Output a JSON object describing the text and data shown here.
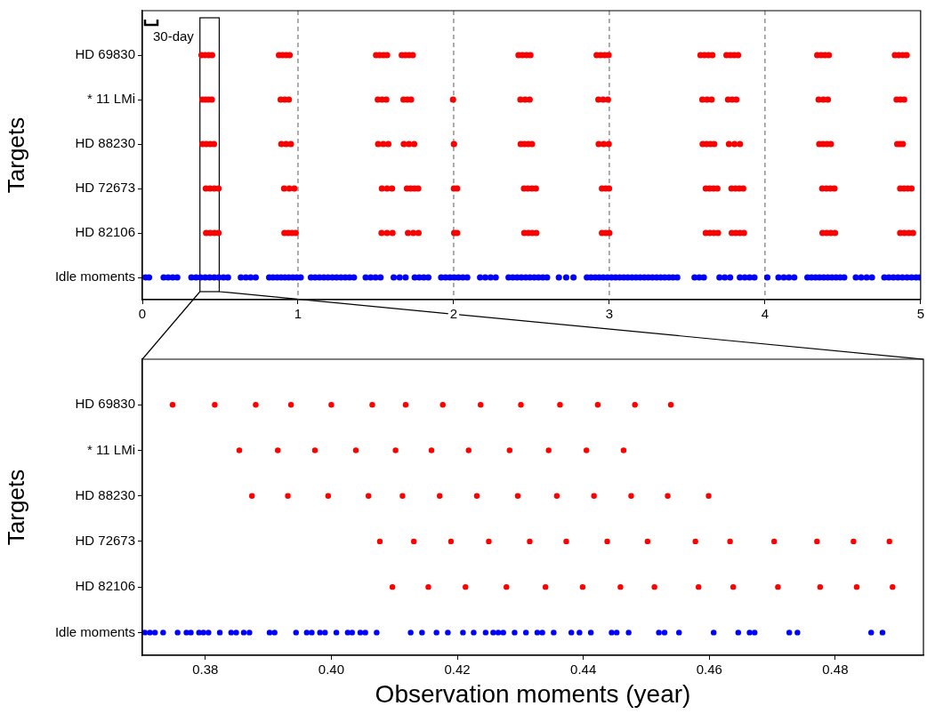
{
  "chart_data": [
    {
      "type": "scatter",
      "orientation": "horizontal",
      "ylabel": "Targets",
      "categories": [
        "HD 69830",
        "* 11 LMi",
        "HD 88230",
        "HD 72673",
        "HD 82106",
        "Idle moments"
      ],
      "xlim": [
        0,
        5
      ],
      "xticks": [
        0,
        1,
        2,
        3,
        4,
        5
      ],
      "marker": "circle",
      "ref_lines": [
        {
          "axis": "x",
          "value": 1,
          "color": "#808080",
          "line_style": "dashed"
        },
        {
          "axis": "x",
          "value": 2,
          "color": "#808080",
          "line_style": "dashed"
        },
        {
          "axis": "x",
          "value": 3,
          "color": "#808080",
          "line_style": "dashed"
        },
        {
          "axis": "x",
          "value": 4,
          "color": "#808080",
          "line_style": "dashed"
        }
      ],
      "annotations": [
        "30-day"
      ],
      "series": [
        {
          "color": "#ff0000",
          "values": [
            0.38,
            0.403,
            0.426,
            0.448,
            0.878,
            0.901,
            0.924,
            0.946,
            1.502,
            1.525,
            1.549,
            1.572,
            1.667,
            1.69,
            1.714,
            1.737,
            2.417,
            2.442,
            2.468,
            2.493,
            2.919,
            2.944,
            2.97,
            2.995,
            3.586,
            3.611,
            3.637,
            3.662,
            3.753,
            3.778,
            3.802,
            3.827,
            4.336,
            4.361,
            4.385,
            4.41,
            4.835,
            4.86,
            4.885,
            4.91
          ],
          "x": [
            "HD 69830",
            "HD 69830",
            "HD 69830",
            "HD 69830",
            "HD 69830",
            "HD 69830",
            "HD 69830",
            "HD 69830",
            "HD 69830",
            "HD 69830",
            "HD 69830",
            "HD 69830",
            "HD 69830",
            "HD 69830",
            "HD 69830",
            "HD 69830",
            "HD 69830",
            "HD 69830",
            "HD 69830",
            "HD 69830",
            "HD 69830",
            "HD 69830",
            "HD 69830",
            "HD 69830",
            "HD 69830",
            "HD 69830",
            "HD 69830",
            "HD 69830",
            "HD 69830",
            "HD 69830",
            "HD 69830",
            "HD 69830",
            "HD 69830",
            "HD 69830",
            "HD 69830",
            "HD 69830",
            "HD 69830",
            "HD 69830",
            "HD 69830",
            "HD 69830"
          ]
        },
        {
          "color": "#ff0000",
          "values": [
            0.386,
            0.406,
            0.426,
            0.446,
            0.889,
            0.915,
            0.941,
            1.513,
            1.54,
            1.567,
            1.678,
            1.702,
            1.726,
            1.996,
            2.429,
            2.459,
            2.488,
            2.93,
            2.96,
            2.991,
            3.598,
            3.628,
            3.657,
            3.763,
            3.79,
            3.816,
            4.345,
            4.375,
            4.404,
            4.846,
            4.87,
            4.894
          ],
          "x": [
            "* 11 LMi",
            "* 11 LMi",
            "* 11 LMi",
            "* 11 LMi",
            "* 11 LMi",
            "* 11 LMi",
            "* 11 LMi",
            "* 11 LMi",
            "* 11 LMi",
            "* 11 LMi",
            "* 11 LMi",
            "* 11 LMi",
            "* 11 LMi",
            "* 11 LMi",
            "* 11 LMi",
            "* 11 LMi",
            "* 11 LMi",
            "* 11 LMi",
            "* 11 LMi",
            "* 11 LMi",
            "* 11 LMi",
            "* 11 LMi",
            "* 11 LMi",
            "* 11 LMi",
            "* 11 LMi",
            "* 11 LMi",
            "* 11 LMi",
            "* 11 LMi",
            "* 11 LMi",
            "* 11 LMi",
            "* 11 LMi",
            "* 11 LMi"
          ]
        },
        {
          "color": "#ff0000",
          "values": [
            0.387,
            0.411,
            0.436,
            0.46,
            0.893,
            0.923,
            0.954,
            1.515,
            1.548,
            1.58,
            1.68,
            1.713,
            1.746,
            2.002,
            2.431,
            2.455,
            2.479,
            2.503,
            2.932,
            2.964,
            2.996,
            3.6,
            3.625,
            3.649,
            3.674,
            3.769,
            3.804,
            3.839,
            4.349,
            4.374,
            4.398,
            4.423,
            4.85,
            4.868,
            4.886
          ],
          "x": [
            "HD 88230",
            "HD 88230",
            "HD 88230",
            "HD 88230",
            "HD 88230",
            "HD 88230",
            "HD 88230",
            "HD 88230",
            "HD 88230",
            "HD 88230",
            "HD 88230",
            "HD 88230",
            "HD 88230",
            "HD 88230",
            "HD 88230",
            "HD 88230",
            "HD 88230",
            "HD 88230",
            "HD 88230",
            "HD 88230",
            "HD 88230",
            "HD 88230",
            "HD 88230",
            "HD 88230",
            "HD 88230",
            "HD 88230",
            "HD 88230",
            "HD 88230",
            "HD 88230",
            "HD 88230",
            "HD 88230",
            "HD 88230",
            "HD 88230",
            "HD 88230",
            "HD 88230"
          ]
        },
        {
          "color": "#ff0000",
          "values": [
            0.408,
            0.435,
            0.462,
            0.489,
            0.911,
            0.944,
            0.976,
            1.539,
            1.572,
            1.604,
            1.7,
            1.724,
            1.748,
            1.772,
            2.002,
            2.022,
            2.452,
            2.477,
            2.503,
            2.528,
            2.953,
            2.976,
            2.998,
            3.62,
            3.645,
            3.669,
            3.694,
            3.785,
            3.81,
            3.835,
            3.86,
            4.368,
            4.394,
            4.42,
            4.446,
            4.869,
            4.893,
            4.917,
            4.941
          ],
          "x": [
            "HD 72673",
            "HD 72673",
            "HD 72673",
            "HD 72673",
            "HD 72673",
            "HD 72673",
            "HD 72673",
            "HD 72673",
            "HD 72673",
            "HD 72673",
            "HD 72673",
            "HD 72673",
            "HD 72673",
            "HD 72673",
            "HD 72673",
            "HD 72673",
            "HD 72673",
            "HD 72673",
            "HD 72673",
            "HD 72673",
            "HD 72673",
            "HD 72673",
            "HD 72673",
            "HD 72673",
            "HD 72673",
            "HD 72673",
            "HD 72673",
            "HD 72673",
            "HD 72673",
            "HD 72673",
            "HD 72673",
            "HD 72673",
            "HD 72673",
            "HD 72673",
            "HD 72673",
            "HD 72673",
            "HD 72673",
            "HD 72673",
            "HD 72673"
          ]
        },
        {
          "color": "#ff0000",
          "values": [
            0.41,
            0.436,
            0.463,
            0.489,
            0.913,
            0.937,
            0.961,
            0.985,
            1.537,
            1.572,
            1.607,
            1.707,
            1.741,
            1.774,
            2.004,
            2.022,
            2.454,
            2.48,
            2.505,
            2.531,
            2.953,
            2.977,
            3.0,
            3.62,
            3.646,
            3.672,
            3.698,
            3.787,
            3.813,
            3.839,
            3.865,
            4.37,
            4.397,
            4.423,
            4.45,
            4.869,
            4.896,
            4.924,
            4.951
          ],
          "x": [
            "HD 82106",
            "HD 82106",
            "HD 82106",
            "HD 82106",
            "HD 82106",
            "HD 82106",
            "HD 82106",
            "HD 82106",
            "HD 82106",
            "HD 82106",
            "HD 82106",
            "HD 82106",
            "HD 82106",
            "HD 82106",
            "HD 82106",
            "HD 82106",
            "HD 82106",
            "HD 82106",
            "HD 82106",
            "HD 82106",
            "HD 82106",
            "HD 82106",
            "HD 82106",
            "HD 82106",
            "HD 82106",
            "HD 82106",
            "HD 82106",
            "HD 82106",
            "HD 82106",
            "HD 82106",
            "HD 82106",
            "HD 82106",
            "HD 82106",
            "HD 82106",
            "HD 82106",
            "HD 82106",
            "HD 82106",
            "HD 82106",
            "HD 82106"
          ]
        },
        {
          "color": "#0000ff",
          "values": [
            0.02,
            0.043,
            0.137,
            0.166,
            0.195,
            0.224,
            0.315,
            0.345,
            0.374,
            0.404,
            0.433,
            0.462,
            0.491,
            0.521,
            0.55,
            0.633,
            0.665,
            0.696,
            0.728,
            0.815,
            0.84,
            0.866,
            0.891,
            0.916,
            0.941,
            0.967,
            0.992,
            1.017,
            1.083,
            1.11,
            1.138,
            1.166,
            1.193,
            1.221,
            1.248,
            1.276,
            1.304,
            1.331,
            1.359,
            1.435,
            1.467,
            1.498,
            1.53,
            1.615,
            1.653,
            1.691,
            1.75,
            1.779,
            1.808,
            1.837,
            1.92,
            1.948,
            1.976,
            2.004,
            2.031,
            2.059,
            2.087,
            2.17,
            2.203,
            2.237,
            2.27,
            2.353,
            2.38,
            2.408,
            2.435,
            2.463,
            2.49,
            2.518,
            2.545,
            2.573,
            2.6,
            2.676,
            2.723,
            2.77,
            2.856,
            2.882,
            2.909,
            2.935,
            2.961,
            2.988,
            3.014,
            3.04,
            3.067,
            3.093,
            3.119,
            3.146,
            3.172,
            3.198,
            3.225,
            3.251,
            3.277,
            3.304,
            3.33,
            3.356,
            3.383,
            3.409,
            3.436,
            3.548,
            3.578,
            3.607,
            3.708,
            3.742,
            3.776,
            3.839,
            3.87,
            3.901,
            3.932,
            4.015,
            4.087,
            4.121,
            4.154,
            4.188,
            4.273,
            4.299,
            4.325,
            4.351,
            4.378,
            4.404,
            4.43,
            4.457,
            4.483,
            4.509,
            4.584,
            4.618,
            4.653,
            4.687,
            4.767,
            4.796,
            4.825,
            4.854,
            4.883,
            4.913,
            4.942,
            4.971,
            4.995
          ],
          "x": [
            "Idle moments",
            "Idle moments",
            "Idle moments",
            "Idle moments",
            "Idle moments",
            "Idle moments",
            "Idle moments",
            "Idle moments",
            "Idle moments",
            "Idle moments",
            "Idle moments",
            "Idle moments",
            "Idle moments",
            "Idle moments",
            "Idle moments",
            "Idle moments",
            "Idle moments",
            "Idle moments",
            "Idle moments",
            "Idle moments",
            "Idle moments",
            "Idle moments",
            "Idle moments",
            "Idle moments",
            "Idle moments",
            "Idle moments",
            "Idle moments",
            "Idle moments",
            "Idle moments",
            "Idle moments",
            "Idle moments",
            "Idle moments",
            "Idle moments",
            "Idle moments",
            "Idle moments",
            "Idle moments",
            "Idle moments",
            "Idle moments",
            "Idle moments",
            "Idle moments",
            "Idle moments",
            "Idle moments",
            "Idle moments",
            "Idle moments",
            "Idle moments",
            "Idle moments",
            "Idle moments",
            "Idle moments",
            "Idle moments",
            "Idle moments",
            "Idle moments",
            "Idle moments",
            "Idle moments",
            "Idle moments",
            "Idle moments",
            "Idle moments",
            "Idle moments",
            "Idle moments",
            "Idle moments",
            "Idle moments",
            "Idle moments",
            "Idle moments",
            "Idle moments",
            "Idle moments",
            "Idle moments",
            "Idle moments",
            "Idle moments",
            "Idle moments",
            "Idle moments",
            "Idle moments",
            "Idle moments",
            "Idle moments",
            "Idle moments",
            "Idle moments",
            "Idle moments",
            "Idle moments",
            "Idle moments",
            "Idle moments",
            "Idle moments",
            "Idle moments",
            "Idle moments",
            "Idle moments",
            "Idle moments",
            "Idle moments",
            "Idle moments",
            "Idle moments",
            "Idle moments",
            "Idle moments",
            "Idle moments",
            "Idle moments",
            "Idle moments",
            "Idle moments",
            "Idle moments",
            "Idle moments",
            "Idle moments",
            "Idle moments",
            "Idle moments",
            "Idle moments",
            "Idle moments",
            "Idle moments",
            "Idle moments",
            "Idle moments",
            "Idle moments",
            "Idle moments",
            "Idle moments",
            "Idle moments",
            "Idle moments",
            "Idle moments",
            "Idle moments",
            "Idle moments",
            "Idle moments",
            "Idle moments",
            "Idle moments",
            "Idle moments",
            "Idle moments",
            "Idle moments",
            "Idle moments",
            "Idle moments",
            "Idle moments",
            "Idle moments",
            "Idle moments",
            "Idle moments",
            "Idle moments",
            "Idle moments",
            "Idle moments",
            "Idle moments",
            "Idle moments",
            "Idle moments",
            "Idle moments",
            "Idle moments",
            "Idle moments",
            "Idle moments",
            "Idle moments",
            "Idle moments",
            "Idle moments"
          ]
        }
      ]
    },
    {
      "type": "scatter",
      "orientation": "horizontal",
      "ylabel": "Targets",
      "xlabel": "Observation moments (year)",
      "categories": [
        "HD 69830",
        "* 11 LMi",
        "HD 88230",
        "HD 72673",
        "HD 82106",
        "Idle moments"
      ],
      "xlim": [
        0.37,
        0.494
      ],
      "xticks": [
        {
          "value": 0.38,
          "label": "0.38"
        },
        {
          "value": 0.4,
          "label": "0.40"
        },
        {
          "value": 0.42,
          "label": "0.42"
        },
        {
          "value": 0.44,
          "label": "0.44"
        },
        {
          "value": 0.46,
          "label": "0.46"
        },
        {
          "value": 0.48,
          "label": "0.48"
        }
      ],
      "marker": "circle",
      "series": [
        {
          "color": "#ff0000",
          "values": [
            0.3748,
            0.3815,
            0.388,
            0.3936,
            0.4,
            0.4065,
            0.4118,
            0.4177,
            0.4237,
            0.4301,
            0.4363,
            0.4423,
            0.4482,
            0.4539
          ],
          "x": [
            "HD 69830",
            "HD 69830",
            "HD 69830",
            "HD 69830",
            "HD 69830",
            "HD 69830",
            "HD 69830",
            "HD 69830",
            "HD 69830",
            "HD 69830",
            "HD 69830",
            "HD 69830",
            "HD 69830",
            "HD 69830"
          ]
        },
        {
          "color": "#ff0000",
          "values": [
            0.3854,
            0.3915,
            0.3974,
            0.4039,
            0.4102,
            0.4159,
            0.4218,
            0.4283,
            0.4345,
            0.4405,
            0.4464
          ],
          "x": [
            "* 11 LMi",
            "* 11 LMi",
            "* 11 LMi",
            "* 11 LMi",
            "* 11 LMi",
            "* 11 LMi",
            "* 11 LMi",
            "* 11 LMi",
            "* 11 LMi",
            "* 11 LMi",
            "* 11 LMi"
          ]
        },
        {
          "color": "#ff0000",
          "values": [
            0.3874,
            0.3931,
            0.3995,
            0.4059,
            0.4113,
            0.4172,
            0.4231,
            0.4296,
            0.4358,
            0.4417,
            0.4476,
            0.4534,
            0.4599
          ],
          "x": [
            "HD 88230",
            "HD 88230",
            "HD 88230",
            "HD 88230",
            "HD 88230",
            "HD 88230",
            "HD 88230",
            "HD 88230",
            "HD 88230",
            "HD 88230",
            "HD 88230",
            "HD 88230",
            "HD 88230"
          ]
        },
        {
          "color": "#ff0000",
          "values": [
            0.4077,
            0.4131,
            0.419,
            0.425,
            0.4315,
            0.4373,
            0.4438,
            0.4502,
            0.4578,
            0.4633,
            0.4703,
            0.4771,
            0.4829,
            0.4886
          ],
          "x": [
            "HD 72673",
            "HD 72673",
            "HD 72673",
            "HD 72673",
            "HD 72673",
            "HD 72673",
            "HD 72673",
            "HD 72673",
            "HD 72673",
            "HD 72673",
            "HD 72673",
            "HD 72673",
            "HD 72673",
            "HD 72673"
          ]
        },
        {
          "color": "#ff0000",
          "values": [
            0.4097,
            0.4154,
            0.4213,
            0.4278,
            0.434,
            0.4399,
            0.4459,
            0.4513,
            0.4583,
            0.4638,
            0.4709,
            0.4776,
            0.4834,
            0.4891
          ],
          "x": [
            "HD 82106",
            "HD 82106",
            "HD 82106",
            "HD 82106",
            "HD 82106",
            "HD 82106",
            "HD 82106",
            "HD 82106",
            "HD 82106",
            "HD 82106",
            "HD 82106",
            "HD 82106",
            "HD 82106",
            "HD 82106"
          ]
        },
        {
          "color": "#0000ff",
          "values": [
            0.3704,
            0.3712,
            0.372,
            0.3733,
            0.3756,
            0.377,
            0.3777,
            0.379,
            0.3797,
            0.3805,
            0.3823,
            0.3841,
            0.3849,
            0.3861,
            0.387,
            0.3902,
            0.391,
            0.3944,
            0.3961,
            0.3969,
            0.3982,
            0.399,
            0.4008,
            0.4026,
            0.4033,
            0.4046,
            0.4054,
            0.4072,
            0.4126,
            0.4144,
            0.4167,
            0.4185,
            0.4209,
            0.4226,
            0.4245,
            0.4257,
            0.4265,
            0.4273,
            0.4291,
            0.4309,
            0.4327,
            0.4335,
            0.4353,
            0.4381,
            0.4394,
            0.4412,
            0.4445,
            0.4453,
            0.4472,
            0.452,
            0.4529,
            0.4552,
            0.4607,
            0.4646,
            0.4664,
            0.4672,
            0.4727,
            0.474,
            0.4857,
            0.4875
          ],
          "x": [
            "Idle moments",
            "Idle moments",
            "Idle moments",
            "Idle moments",
            "Idle moments",
            "Idle moments",
            "Idle moments",
            "Idle moments",
            "Idle moments",
            "Idle moments",
            "Idle moments",
            "Idle moments",
            "Idle moments",
            "Idle moments",
            "Idle moments",
            "Idle moments",
            "Idle moments",
            "Idle moments",
            "Idle moments",
            "Idle moments",
            "Idle moments",
            "Idle moments",
            "Idle moments",
            "Idle moments",
            "Idle moments",
            "Idle moments",
            "Idle moments",
            "Idle moments",
            "Idle moments",
            "Idle moments",
            "Idle moments",
            "Idle moments",
            "Idle moments",
            "Idle moments",
            "Idle moments",
            "Idle moments",
            "Idle moments",
            "Idle moments",
            "Idle moments",
            "Idle moments",
            "Idle moments",
            "Idle moments",
            "Idle moments",
            "Idle moments",
            "Idle moments",
            "Idle moments",
            "Idle moments",
            "Idle moments",
            "Idle moments",
            "Idle moments",
            "Idle moments",
            "Idle moments",
            "Idle moments",
            "Idle moments",
            "Idle moments",
            "Idle moments",
            "Idle moments",
            "Idle moments",
            "Idle moments",
            "Idle moments"
          ]
        }
      ]
    }
  ]
}
